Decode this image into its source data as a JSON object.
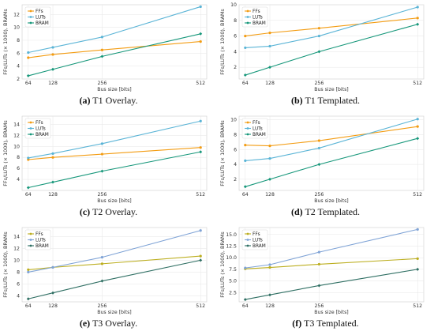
{
  "chart_data": [
    {
      "type": "line",
      "panel_letter": "(a)",
      "caption": "T1 Overlay.",
      "x": [
        64,
        128,
        256,
        512
      ],
      "xlabel": "Bus size [bits]",
      "ylabel": "FFs/LUTs (× 1000), BRAMs",
      "xlim": [
        48,
        528
      ],
      "ylim": [
        2,
        13.5
      ],
      "yticks": [
        2,
        4,
        6,
        8,
        10,
        12
      ],
      "legend": "top-left",
      "grid": true,
      "series": [
        {
          "name": "FFs",
          "color": "#f39c12",
          "values": [
            5.3,
            5.8,
            6.5,
            7.8
          ]
        },
        {
          "name": "LUTs",
          "color": "#5ab4d6",
          "values": [
            6.1,
            6.9,
            8.5,
            13.2
          ]
        },
        {
          "name": "BRAM",
          "color": "#16977a",
          "values": [
            2.5,
            3.5,
            5.5,
            9.0
          ]
        }
      ]
    },
    {
      "type": "line",
      "panel_letter": "(b)",
      "caption": "T1 Templated.",
      "x": [
        64,
        128,
        256,
        512
      ],
      "xlabel": "Bus size [bits]",
      "ylabel": "FFs/LUTs (× 1000), BRAMs",
      "xlim": [
        48,
        528
      ],
      "ylim": [
        0.5,
        10
      ],
      "yticks": [
        2,
        4,
        6,
        8,
        10
      ],
      "legend": "top-left",
      "grid": true,
      "series": [
        {
          "name": "FFs",
          "color": "#f39c12",
          "values": [
            6.0,
            6.4,
            7.0,
            8.3
          ]
        },
        {
          "name": "LUTs",
          "color": "#5ab4d6",
          "values": [
            4.5,
            4.7,
            6.0,
            9.7
          ]
        },
        {
          "name": "BRAM",
          "color": "#16977a",
          "values": [
            1.0,
            2.0,
            4.0,
            7.5
          ]
        }
      ]
    },
    {
      "type": "line",
      "panel_letter": "(c)",
      "caption": "T2 Overlay.",
      "x": [
        64,
        128,
        256,
        512
      ],
      "xlabel": "Bus size [bits]",
      "ylabel": "FFs/LUTs (× 1000), BRAMs",
      "xlim": [
        48,
        528
      ],
      "ylim": [
        2,
        15.5
      ],
      "yticks": [
        4,
        6,
        8,
        10,
        12,
        14
      ],
      "legend": "top-left",
      "grid": true,
      "series": [
        {
          "name": "FFs",
          "color": "#f39c12",
          "values": [
            7.6,
            8.0,
            8.6,
            9.8
          ]
        },
        {
          "name": "LUTs",
          "color": "#5ab4d6",
          "values": [
            7.9,
            8.7,
            10.5,
            14.6
          ]
        },
        {
          "name": "BRAM",
          "color": "#16977a",
          "values": [
            2.5,
            3.5,
            5.5,
            9.0
          ]
        }
      ]
    },
    {
      "type": "line",
      "panel_letter": "(d)",
      "caption": "T2 Templated.",
      "x": [
        64,
        128,
        256,
        512
      ],
      "xlabel": "Bus size [bits]",
      "ylabel": "FFs/LUTs (× 1000), BRAMs",
      "xlim": [
        48,
        528
      ],
      "ylim": [
        0.5,
        10.5
      ],
      "yticks": [
        2,
        4,
        6,
        8,
        10
      ],
      "legend": "top-left",
      "grid": true,
      "series": [
        {
          "name": "FFs",
          "color": "#f39c12",
          "values": [
            6.6,
            6.5,
            7.2,
            9.1
          ]
        },
        {
          "name": "LUTs",
          "color": "#5ab4d6",
          "values": [
            4.5,
            4.8,
            6.2,
            10.1
          ]
        },
        {
          "name": "BRAM",
          "color": "#16977a",
          "values": [
            1.0,
            2.0,
            4.0,
            7.5
          ]
        }
      ]
    },
    {
      "type": "line",
      "panel_letter": "(e)",
      "caption": "T3 Overlay.",
      "x": [
        64,
        128,
        256,
        512
      ],
      "xlabel": "Bus size [bits]",
      "ylabel": "FFs/LUTs (× 1000), BRAMs",
      "xlim": [
        48,
        528
      ],
      "ylim": [
        3,
        15.5
      ],
      "yticks": [
        4,
        6,
        8,
        10,
        12,
        14
      ],
      "legend": "top-left",
      "grid": true,
      "series": [
        {
          "name": "FFs",
          "color": "#bcae1f",
          "values": [
            8.4,
            8.8,
            9.4,
            10.7
          ]
        },
        {
          "name": "LUTs",
          "color": "#7fa3d6",
          "values": [
            8.0,
            8.8,
            10.5,
            15.0
          ]
        },
        {
          "name": "BRAM",
          "color": "#2f6f63",
          "values": [
            3.5,
            4.5,
            6.5,
            10.0
          ]
        }
      ]
    },
    {
      "type": "line",
      "panel_letter": "(f)",
      "caption": "T3 Templated.",
      "x": [
        64,
        128,
        256,
        512
      ],
      "xlabel": "Bus size [bits]",
      "ylabel": "FFs/LUTs (× 1000), BRAMs",
      "xlim": [
        48,
        528
      ],
      "ylim": [
        0.5,
        16.5
      ],
      "yticks": [
        2.5,
        5.0,
        7.5,
        10.0,
        12.5,
        15.0
      ],
      "ytick_labels": [
        "2.5",
        "5.0",
        "7.5",
        "10.0",
        "12.5",
        "15.0"
      ],
      "legend": "top-left",
      "grid": true,
      "series": [
        {
          "name": "FFs",
          "color": "#bcae1f",
          "values": [
            7.6,
            7.9,
            8.6,
            9.8
          ]
        },
        {
          "name": "LUTs",
          "color": "#7fa3d6",
          "values": [
            7.8,
            8.5,
            11.2,
            16.1
          ]
        },
        {
          "name": "BRAM",
          "color": "#2f6f63",
          "values": [
            1.0,
            2.0,
            4.0,
            7.5
          ]
        }
      ]
    }
  ]
}
